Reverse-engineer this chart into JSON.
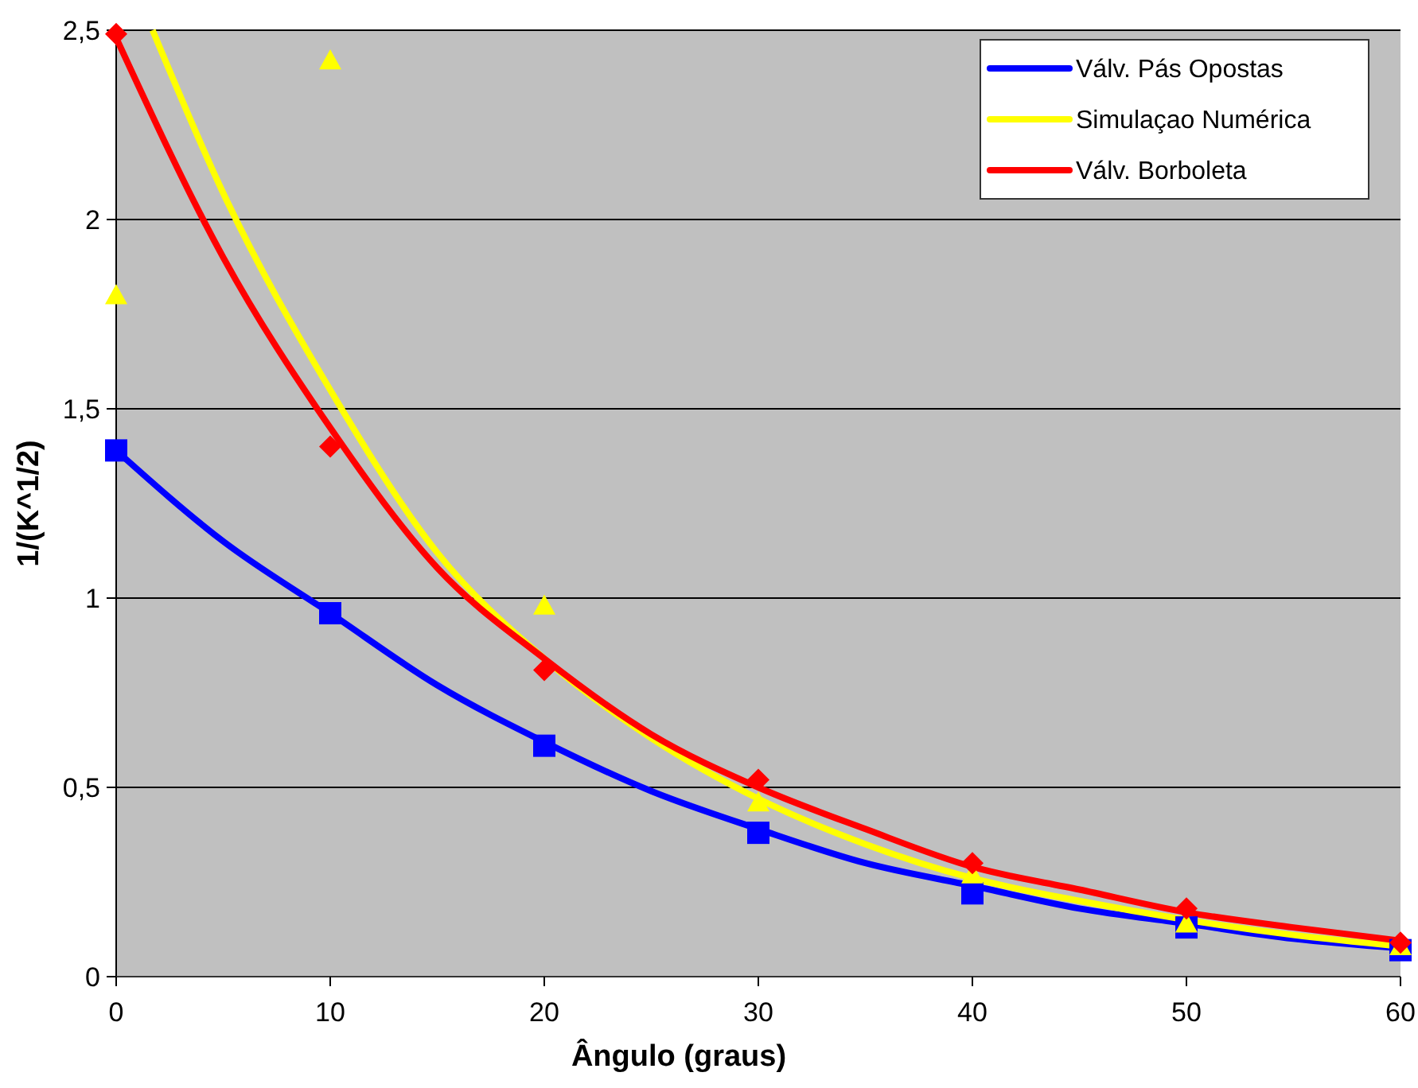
{
  "chart_data": {
    "type": "scatter",
    "xlabel": "Ângulo (graus)",
    "ylabel": "1/(K^1/2)",
    "xlim": [
      0,
      60
    ],
    "xticks": [
      0,
      10,
      20,
      30,
      40,
      50,
      60
    ],
    "ylim": [
      0,
      2.5
    ],
    "yticks": [
      0,
      {
        "value": 0.5,
        "label": "0,5"
      },
      1,
      {
        "value": 1.5,
        "label": "1,5"
      },
      2,
      {
        "value": 2.5,
        "label": "2,5"
      }
    ],
    "grid": "y",
    "legend": "top right",
    "series": [
      {
        "marker": "square",
        "color": "#0000ff",
        "x": [
          0,
          10,
          20,
          30,
          40,
          50,
          60
        ],
        "values": [
          1.39,
          0.96,
          0.61,
          0.38,
          0.22,
          0.13,
          0.07
        ]
      },
      {
        "marker": "triangle",
        "color": "#ffff00",
        "x": [
          0,
          10,
          20,
          30,
          40,
          50,
          60
        ],
        "values": [
          1.8,
          2.42,
          0.98,
          0.46,
          0.27,
          0.14,
          0.08
        ]
      },
      {
        "marker": "diamond",
        "color": "#ff0000",
        "x": [
          0,
          10,
          20,
          30,
          40,
          50,
          60
        ],
        "values": [
          2.49,
          1.4,
          0.81,
          0.52,
          0.3,
          0.18,
          0.09
        ]
      },
      {
        "type": "line",
        "marker": "none",
        "name": "Válv. Pás Opostas",
        "color": "#0000ff",
        "x": [
          0,
          5,
          10,
          15,
          20,
          25,
          30,
          35,
          40,
          45,
          50,
          55,
          60
        ],
        "values": [
          1.39,
          1.15,
          0.96,
          0.77,
          0.62,
          0.49,
          0.39,
          0.3,
          0.24,
          0.18,
          0.14,
          0.1,
          0.075
        ]
      },
      {
        "type": "line",
        "marker": "none",
        "name": "Simulaçao Numérica",
        "color": "#ffff00",
        "x": [
          1.7,
          5,
          10,
          15,
          20,
          25,
          30,
          35,
          40,
          45,
          50,
          55,
          60
        ],
        "values": [
          2.5,
          2.07,
          1.55,
          1.12,
          0.84,
          0.63,
          0.47,
          0.35,
          0.26,
          0.2,
          0.15,
          0.11,
          0.08
        ]
      },
      {
        "type": "line",
        "marker": "none",
        "name": "Válv. Borboleta",
        "color": "#ff0000",
        "x": [
          0,
          5,
          10,
          15,
          20,
          25,
          30,
          35,
          40,
          45,
          50,
          55,
          60
        ],
        "values": [
          2.48,
          1.9,
          1.45,
          1.08,
          0.84,
          0.64,
          0.5,
          0.39,
          0.29,
          0.23,
          0.17,
          0.13,
          0.095
        ]
      }
    ]
  }
}
